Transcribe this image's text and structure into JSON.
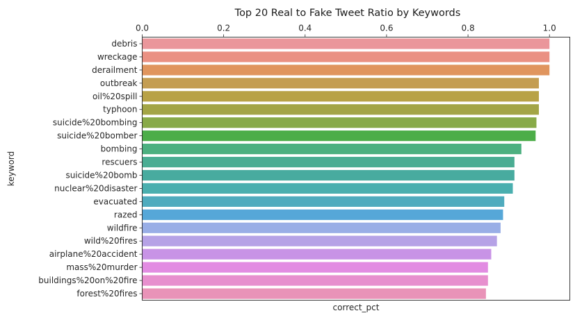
{
  "chart_data": {
    "type": "bar",
    "orientation": "horizontal",
    "title": "Top 20 Real to Fake Tweet Ratio by Keywords",
    "xlabel": "correct_pct",
    "ylabel": "keyword",
    "xlim": [
      0,
      1.05
    ],
    "xticks": [
      "0.0",
      "0.2",
      "0.4",
      "0.6",
      "0.8",
      "1.0"
    ],
    "x_axis_position": "top",
    "grid": false,
    "categories": [
      "debris",
      "wreckage",
      "derailment",
      "outbreak",
      "oil%20spill",
      "typhoon",
      "suicide%20bombing",
      "suicide%20bomber",
      "bombing",
      "rescuers",
      "suicide%20bomb",
      "nuclear%20disaster",
      "evacuated",
      "razed",
      "wildfire",
      "wild%20fires",
      "airplane%20accident",
      "mass%20murder",
      "buildings%20on%20fire",
      "forest%20fires"
    ],
    "values": [
      1.0,
      1.0,
      1.0,
      0.974,
      0.974,
      0.974,
      0.968,
      0.966,
      0.931,
      0.914,
      0.914,
      0.91,
      0.889,
      0.886,
      0.88,
      0.871,
      0.857,
      0.849,
      0.849,
      0.844
    ],
    "colors": [
      "#ea969b",
      "#ea9183",
      "#e0955e",
      "#c49d52",
      "#b8a246",
      "#a3a546",
      "#88aa48",
      "#4cad48",
      "#4cb080",
      "#4aad93",
      "#48ab9f",
      "#4aafaf",
      "#4fabbe",
      "#56a7d8",
      "#99aee6",
      "#b6a2e6",
      "#c893e6",
      "#e28ce2",
      "#e78fce",
      "#e993b8"
    ]
  }
}
